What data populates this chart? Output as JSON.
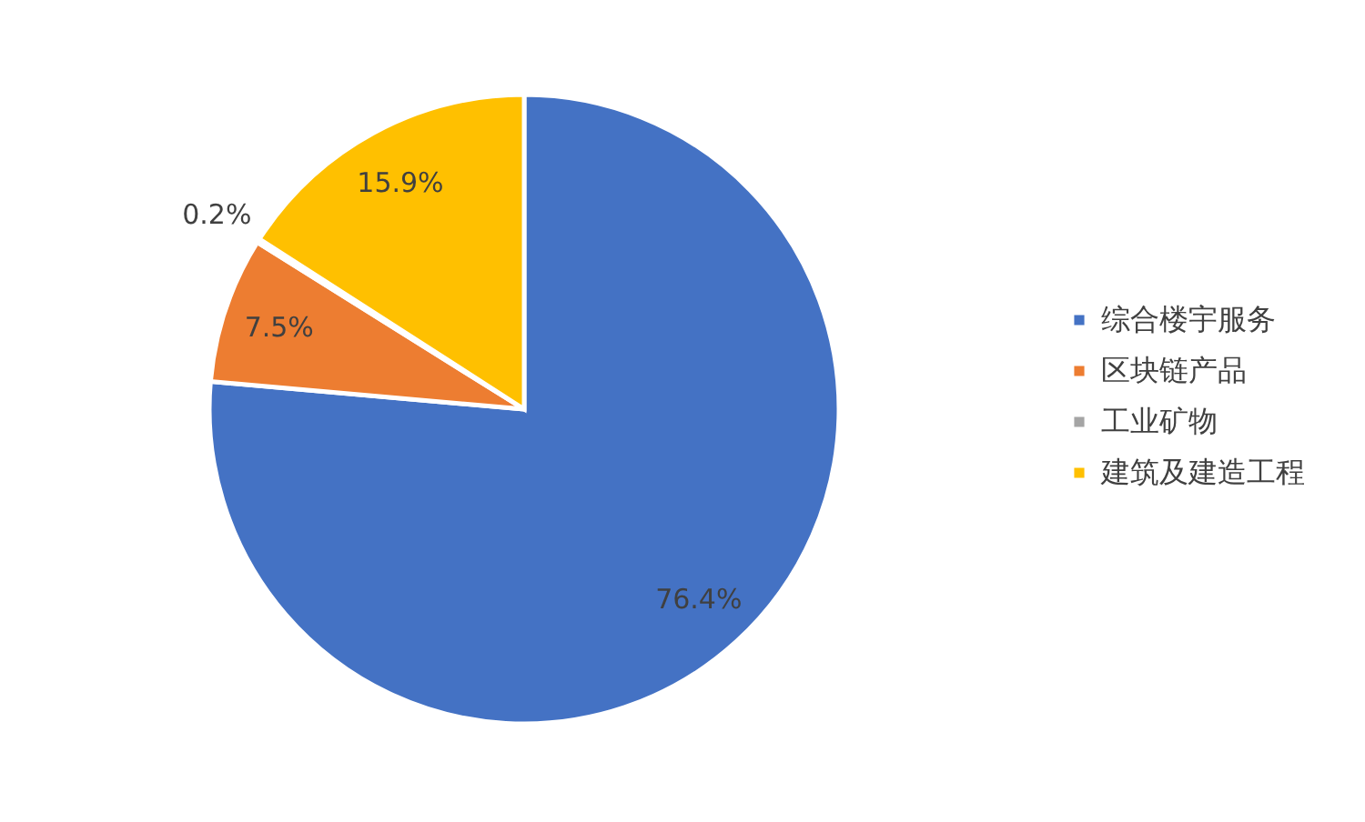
{
  "chart_data": {
    "type": "pie",
    "categories": [
      "综合楼宇服务",
      "区块链产品",
      "工业矿物",
      "建筑及建造工程"
    ],
    "values": [
      76.4,
      7.5,
      0.2,
      15.9
    ],
    "colors": [
      "#4472c4",
      "#ed7d31",
      "#a5a5a5",
      "#ffc000"
    ],
    "value_labels": [
      "76.4%",
      "7.5%",
      "0.2%",
      "15.9%"
    ],
    "legend": "right"
  }
}
